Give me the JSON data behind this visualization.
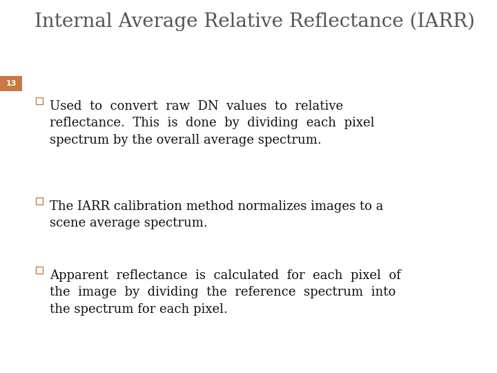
{
  "title": "Internal Average Relative Reflectance (IARR)",
  "title_fontsize": 20,
  "title_color": "#555555",
  "title_font": "serif",
  "slide_number": "13",
  "slide_number_color": "#ffffff",
  "slide_number_bg": "#c87941",
  "header_bar_color": "#8fa8c8",
  "bullet_color": "#111111",
  "bullet_square_color": "#c87941",
  "bullet_points": [
    "Used  to  convert  raw  DN  values  to  relative\nreflectance.  This  is  done  by  dividing  each  pixel\nspectrum by the overall average spectrum.",
    "The IARR calibration method normalizes images to a\nscene average spectrum.",
    "Apparent  reflectance  is  calculated  for  each  pixel  of\nthe  image  by  dividing  the  reference  spectrum  into\nthe spectrum for each pixel."
  ],
  "bullet_fontsize": 13,
  "background_color": "#ffffff"
}
